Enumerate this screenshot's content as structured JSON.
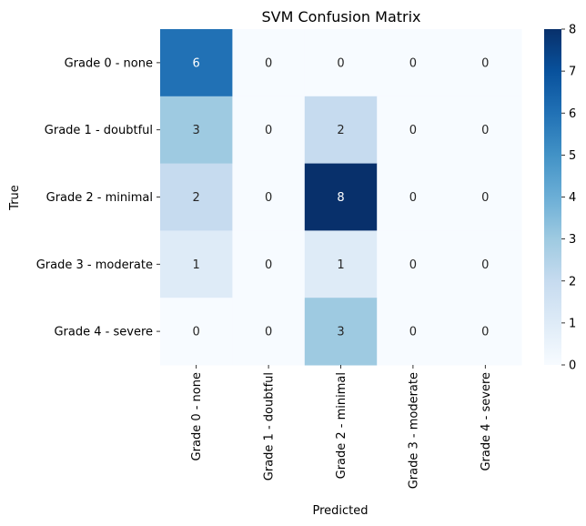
{
  "chart_data": {
    "type": "heatmap",
    "title": "SVM Confusion Matrix",
    "xlabel": "Predicted",
    "ylabel": "True",
    "x_categories": [
      "Grade 0 - none",
      "Grade 1 - doubtful",
      "Grade 2 - minimal",
      "Grade 3 - moderate",
      "Grade 4 - severe"
    ],
    "y_categories": [
      "Grade 0 - none",
      "Grade 1 - doubtful",
      "Grade 2 - minimal",
      "Grade 3 - moderate",
      "Grade 4 - severe"
    ],
    "values": [
      [
        6,
        0,
        0,
        0,
        0
      ],
      [
        3,
        0,
        2,
        0,
        0
      ],
      [
        2,
        0,
        8,
        0,
        0
      ],
      [
        1,
        0,
        1,
        0,
        0
      ],
      [
        0,
        0,
        3,
        0,
        0
      ]
    ],
    "colorbar": {
      "min": 0,
      "max": 8,
      "ticks": [
        0,
        1,
        2,
        3,
        4,
        5,
        6,
        7,
        8
      ]
    },
    "colormap": "Blues",
    "colors": {
      "low": "#f7fbff",
      "high": "#08306b",
      "dark_text": "#262626",
      "light_text": "#ffffff"
    }
  }
}
